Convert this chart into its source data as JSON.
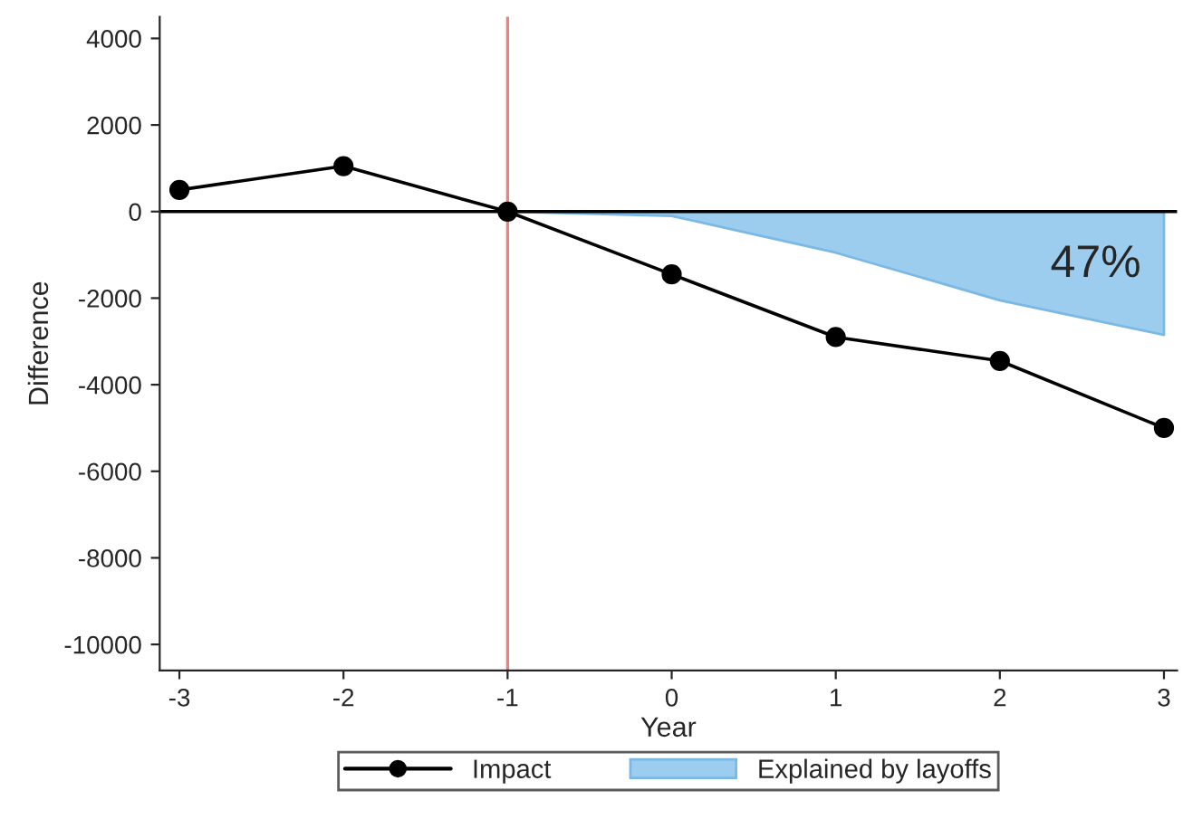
{
  "chart_data": {
    "type": "line",
    "xlabel": "Year",
    "ylabel": "Difference",
    "x": [
      -3,
      -2,
      -1,
      0,
      1,
      2,
      3
    ],
    "series": [
      {
        "name": "Impact",
        "marker": "circle",
        "color": "#000000",
        "values": [
          500,
          1050,
          0,
          -1450,
          -2900,
          -3450,
          -5000
        ]
      },
      {
        "name": "Explained by layoffs",
        "type": "area",
        "color": "#9dcdee",
        "x": [
          -1,
          0,
          1,
          2,
          3
        ],
        "values": [
          0,
          -100,
          -950,
          -2050,
          -2850
        ]
      }
    ],
    "xlim": [
      -3.12,
      3.08
    ],
    "ylim": [
      -10600,
      4500
    ],
    "xticks": [
      -3,
      -2,
      -1,
      0,
      1,
      2,
      3
    ],
    "yticks": [
      -10000,
      -8000,
      -6000,
      -4000,
      -2000,
      0,
      2000,
      4000
    ],
    "ref_lines": [
      {
        "axis": "x",
        "value": -1,
        "color": "#f08080"
      },
      {
        "axis": "y",
        "value": 0,
        "color": "#000000"
      }
    ],
    "annotations": [
      "47%"
    ],
    "line_style": "solid",
    "grid": false,
    "legend": "bottom"
  }
}
